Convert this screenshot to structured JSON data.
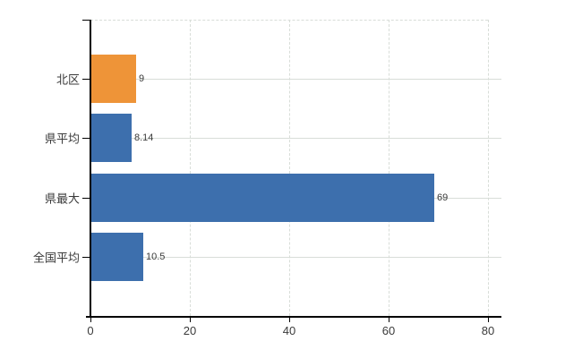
{
  "chart_data": {
    "type": "bar",
    "orientation": "horizontal",
    "title": "",
    "xlabel": "",
    "ylabel": "",
    "categories": [
      "北区",
      "県平均",
      "県最大",
      "全国平均"
    ],
    "values": [
      9,
      8.14,
      69,
      10.5
    ],
    "value_labels": [
      "9",
      "8.14",
      "69",
      "10.5"
    ],
    "highlighted_category": "北区",
    "xlim": [
      0,
      80
    ],
    "x_ticks": [
      0,
      20,
      40,
      60,
      80
    ],
    "x_tick_labels": [
      "0",
      "20",
      "40",
      "60",
      "80"
    ],
    "grid": true,
    "legend": false
  },
  "colors": {
    "highlight_bar": "#ee9438",
    "default_bar": "#3d6fad",
    "gridline": "#d8ddd8",
    "axis": "#000000",
    "text": "#3a3a3a",
    "background": "#ffffff"
  }
}
